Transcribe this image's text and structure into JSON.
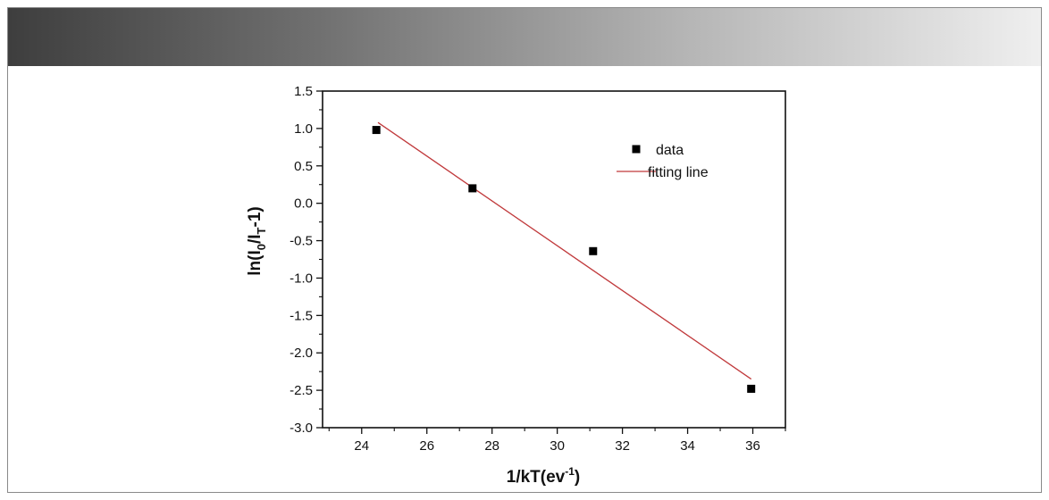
{
  "chart_data": {
    "type": "scatter",
    "title": "",
    "xlabel": {
      "main": "1/kT(ev",
      "sup": "-1",
      "close": ")"
    },
    "ylabel": {
      "prefix": "ln(I",
      "sub0": "0",
      "mid": "/I",
      "subT": "T",
      "suffix": "-1)"
    },
    "xlim": [
      22.8,
      37.0
    ],
    "ylim": [
      -3.0,
      1.5
    ],
    "xticks": [
      24,
      26,
      28,
      30,
      32,
      34,
      36
    ],
    "xtick_labels": [
      "24",
      "26",
      "28",
      "30",
      "32",
      "34",
      "36"
    ],
    "yticks": [
      1.5,
      1.0,
      0.5,
      0.0,
      -0.5,
      -1.0,
      -1.5,
      -2.0,
      -2.5,
      -3.0
    ],
    "ytick_labels": [
      "1.5",
      "1.0",
      "0.5",
      "0.0",
      "-0.5",
      "-1.0",
      "-1.5",
      "-2.0",
      "-2.5",
      "-3.0"
    ],
    "grid": false,
    "legend_position": "top-right",
    "series": [
      {
        "name": "data",
        "kind": "scatter",
        "marker": "square",
        "color": "#000000",
        "x": [
          24.45,
          27.4,
          31.1,
          35.95
        ],
        "y": [
          0.98,
          0.2,
          -0.64,
          -2.48
        ]
      },
      {
        "name": "fitting line",
        "kind": "line",
        "color": "#c0393b",
        "x": [
          24.5,
          35.95
        ],
        "y": [
          1.08,
          -2.35
        ]
      }
    ]
  }
}
